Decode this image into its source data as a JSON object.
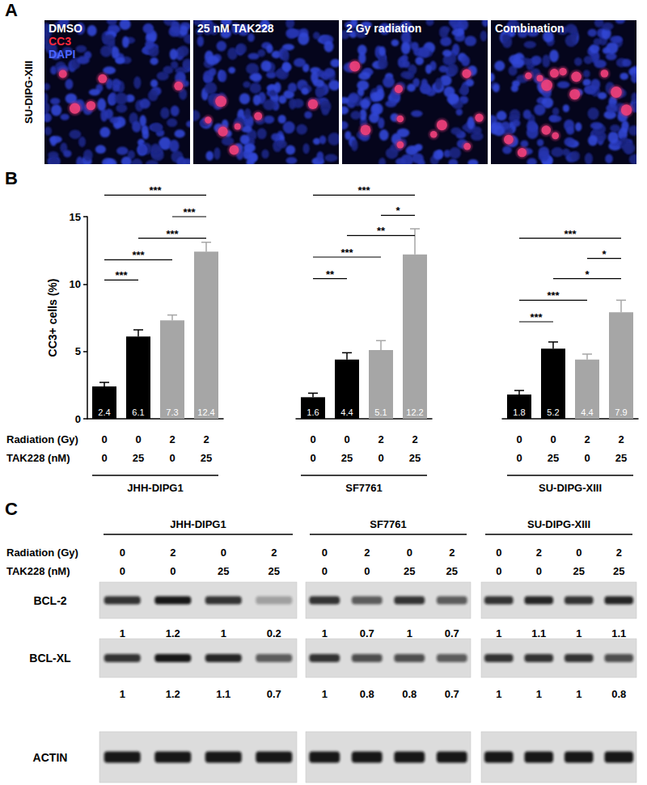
{
  "panel_a": {
    "label": "A",
    "row_label": "SU-DIPG-XIII",
    "images": [
      {
        "title": "DMSO",
        "stains": [
          {
            "text": "CC3",
            "color": "#ff2a3c"
          },
          {
            "text": "DAPI",
            "color": "#4d66ff"
          }
        ]
      },
      {
        "title": "25 nM TAK228"
      },
      {
        "title": "2 Gy radiation"
      },
      {
        "title": "Combination"
      }
    ]
  },
  "chart_data": {
    "type": "bar",
    "panel_label": "B",
    "ylabel": "CC3+ cells (%)",
    "ylim": [
      0,
      15
    ],
    "yticks": [
      0,
      5,
      10,
      15
    ],
    "row_labels": [
      "Radiation (Gy)",
      "TAK228 (nM)"
    ],
    "radiation": [
      0,
      0,
      2,
      2
    ],
    "tak228": [
      0,
      25,
      0,
      25
    ],
    "colors": [
      "#000000",
      "#000000",
      "#a6a6a6",
      "#a6a6a6"
    ],
    "data_labels": true,
    "groups": [
      {
        "name": "JHH-DIPG1",
        "values": [
          2.4,
          6.1,
          7.3,
          12.4
        ],
        "errors": [
          0.3,
          0.5,
          0.4,
          0.7
        ],
        "comparisons": [
          {
            "from": 0,
            "to": 3,
            "y": 16.6,
            "label": "***"
          },
          {
            "from": 2,
            "to": 3,
            "y": 15.0,
            "label": "***"
          },
          {
            "from": 1,
            "to": 3,
            "y": 13.4,
            "label": "***"
          },
          {
            "from": 0,
            "to": 2,
            "y": 11.8,
            "label": "***"
          },
          {
            "from": 0,
            "to": 1,
            "y": 10.3,
            "label": "***"
          }
        ]
      },
      {
        "name": "SF7761",
        "values": [
          1.6,
          4.4,
          5.1,
          12.2
        ],
        "errors": [
          0.3,
          0.5,
          0.7,
          1.9
        ],
        "comparisons": [
          {
            "from": 0,
            "to": 3,
            "y": 16.6,
            "label": "***"
          },
          {
            "from": 2,
            "to": 3,
            "y": 15.1,
            "label": "*"
          },
          {
            "from": 1,
            "to": 3,
            "y": 13.6,
            "label": "**"
          },
          {
            "from": 0,
            "to": 2,
            "y": 12.0,
            "label": "***"
          },
          {
            "from": 0,
            "to": 1,
            "y": 10.4,
            "label": "**"
          }
        ]
      },
      {
        "name": "SU-DIPG-XIII",
        "values": [
          1.8,
          5.2,
          4.4,
          7.9
        ],
        "errors": [
          0.3,
          0.5,
          0.4,
          0.9
        ],
        "comparisons": [
          {
            "from": 0,
            "to": 3,
            "y": 13.4,
            "label": "***"
          },
          {
            "from": 2,
            "to": 3,
            "y": 11.9,
            "label": "*"
          },
          {
            "from": 1,
            "to": 3,
            "y": 10.4,
            "label": "*"
          },
          {
            "from": 0,
            "to": 2,
            "y": 8.8,
            "label": "***"
          },
          {
            "from": 0,
            "to": 1,
            "y": 7.2,
            "label": "***"
          }
        ]
      }
    ]
  },
  "panel_c": {
    "label": "C",
    "row_labels": [
      "Radiation (Gy)",
      "TAK228 (nM)"
    ],
    "radiation": [
      0,
      2,
      0,
      2
    ],
    "tak228": [
      0,
      0,
      25,
      25
    ],
    "proteins": [
      "BCL-2",
      "BCL-XL",
      "ACTIN"
    ],
    "cell_lines": [
      {
        "name": "JHH-DIPG1",
        "quant": {
          "BCL-2": [
            1,
            1.2,
            1,
            0.2
          ],
          "BCL-XL": [
            1,
            1.2,
            1.1,
            0.7
          ]
        }
      },
      {
        "name": "SF7761",
        "quant": {
          "BCL-2": [
            1,
            0.7,
            1,
            0.7
          ],
          "BCL-XL": [
            1,
            0.8,
            0.8,
            0.7
          ]
        }
      },
      {
        "name": "SU-DIPG-XIII",
        "quant": {
          "BCL-2": [
            1,
            1.1,
            1,
            1.1
          ],
          "BCL-XL": [
            1,
            1,
            1,
            0.8
          ]
        }
      }
    ]
  }
}
